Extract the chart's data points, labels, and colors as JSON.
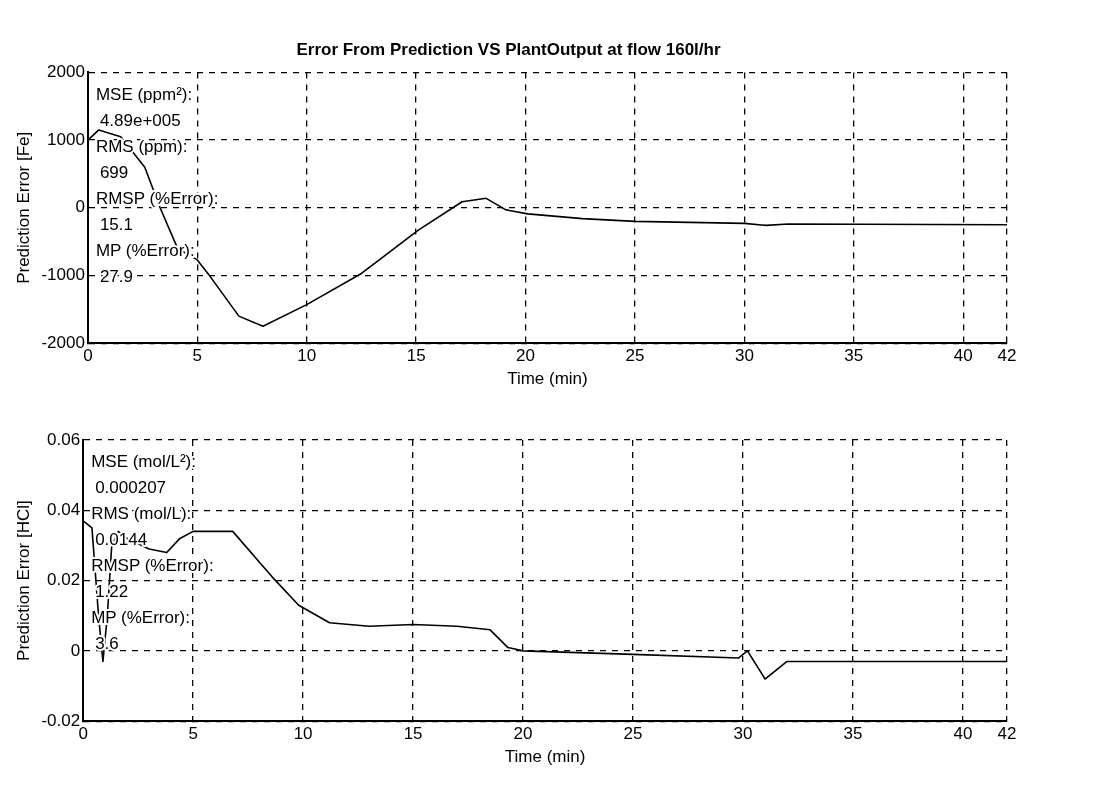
{
  "chart_data": [
    {
      "type": "line",
      "title": "Error From Prediction VS PlantOutput at flow 160l/hr",
      "xlabel": "Time (min)",
      "ylabel": "Prediction Error [Fe]",
      "xlim": [
        0,
        42
      ],
      "xticks": [
        0,
        5,
        10,
        15,
        20,
        25,
        30,
        35,
        40,
        42
      ],
      "ylim": [
        -2000,
        2000
      ],
      "yticks": [
        -2000,
        -1000,
        0,
        1000,
        2000
      ],
      "grid": true,
      "legend": false,
      "marker": "none",
      "line_style": "solid",
      "annotations": [
        "MSE (ppm²):",
        "4.89e+005",
        "RMS (ppm):",
        "699",
        "RMSP (%Error):",
        "15.1",
        "MP (%Error):",
        "27.9"
      ],
      "series": [
        {
          "color": "#000000",
          "x": [
            0,
            0.5,
            1.5,
            2.6,
            3.3,
            4.1,
            5,
            5.6,
            6.9,
            8,
            10,
            12.5,
            15.1,
            17.1,
            18.2,
            19.1,
            20.1,
            22.6,
            25,
            30,
            31,
            32,
            42
          ],
          "values": [
            1000,
            1150,
            1050,
            600,
            0,
            -600,
            -770,
            -1020,
            -1600,
            -1750,
            -1430,
            -970,
            -330,
            90,
            140,
            -30,
            -90,
            -160,
            -200,
            -230,
            -260,
            -240,
            -250
          ]
        }
      ]
    },
    {
      "type": "line",
      "xlabel": "Time (min)",
      "ylabel": "Prediction Error [HCl]",
      "xlim": [
        0,
        42
      ],
      "xticks": [
        0,
        5,
        10,
        15,
        20,
        25,
        30,
        35,
        40,
        42
      ],
      "ylim": [
        -0.02,
        0.06
      ],
      "yticks": [
        -0.02,
        0,
        0.02,
        0.04,
        0.06
      ],
      "grid": true,
      "legend": false,
      "marker": "none",
      "line_style": "solid",
      "annotations": [
        "MSE (mol/L²):",
        "0.000207",
        "RMS (mol/L):",
        "0.0144",
        "RMSP (%Error):",
        "1.22",
        "MP (%Error):",
        "3.6"
      ],
      "series": [
        {
          "color": "#000000",
          "x": [
            0,
            0.4,
            0.7,
            0.9,
            1.1,
            1.3,
            1.6,
            2,
            3,
            3.8,
            4.4,
            5,
            6.8,
            8.6,
            9.8,
            11.2,
            13,
            15,
            17,
            18.5,
            19.3,
            20,
            25,
            29.8,
            30.2,
            31,
            32,
            42
          ],
          "values": [
            0.037,
            0.035,
            0.01,
            -0.003,
            0.01,
            0.03,
            0.034,
            0.032,
            0.029,
            0.028,
            0.032,
            0.034,
            0.034,
            0.021,
            0.013,
            0.008,
            0.007,
            0.0075,
            0.007,
            0.006,
            0.001,
            0,
            -0.001,
            -0.002,
            0,
            -0.008,
            -0.003,
            -0.003
          ]
        }
      ]
    }
  ]
}
